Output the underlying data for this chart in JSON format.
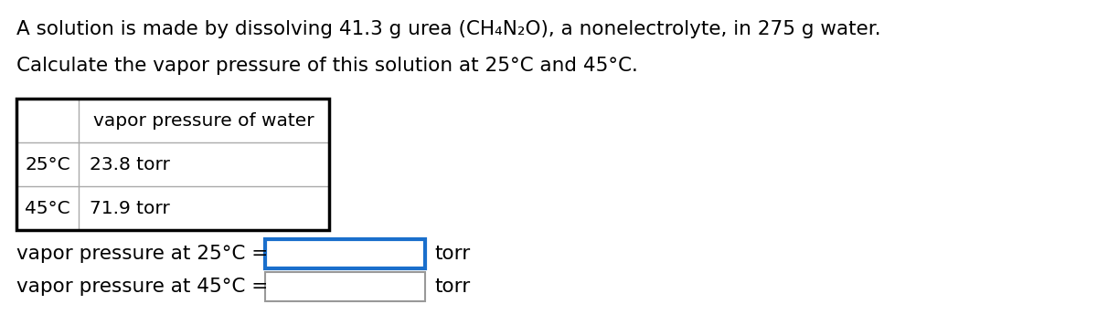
{
  "line1": "A solution is made by dissolving 41.3 g urea (CH₄N₂O), a nonelectrolyte, in 275 g water.",
  "line2": "Calculate the vapor pressure of this solution at 25°C and 45°C.",
  "table_header_col2": "vapor pressure of water",
  "table_row1_col1": "25°C",
  "table_row1_col2": "23.8 torr",
  "table_row2_col1": "45°C",
  "table_row2_col2": "71.9 torr",
  "label_25": "vapor pressure at 25°C =",
  "label_45": "vapor pressure at 45°C =",
  "unit": "torr",
  "bg_color": "#ffffff",
  "text_color": "#000000",
  "table_border_color": "#000000",
  "table_inner_color": "#aaaaaa",
  "input_box_blue": "#1a6fcc",
  "input_box_gray": "#999999",
  "font_size": 15.5
}
